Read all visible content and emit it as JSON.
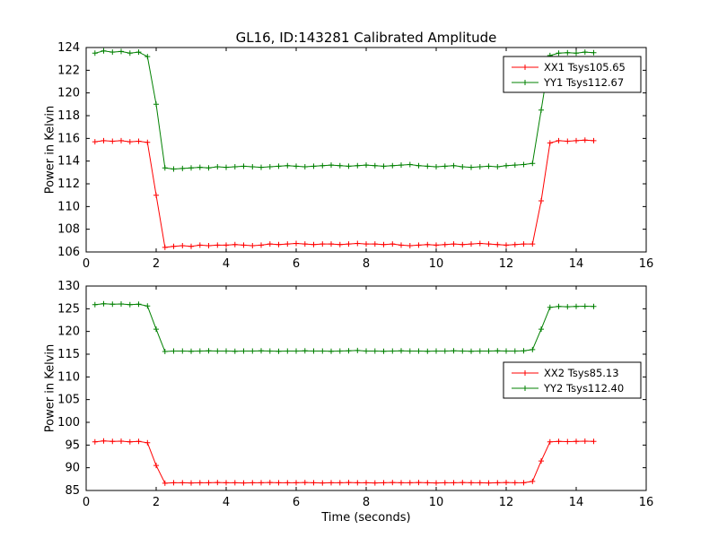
{
  "chart_data": [
    {
      "type": "line",
      "title": "GL16, ID:143281 Calibrated Amplitude",
      "xlabel": "",
      "ylabel": "Power in Kelvin",
      "xlim": [
        0,
        16
      ],
      "ylim": [
        106,
        124
      ],
      "xticks": [
        0,
        2,
        4,
        6,
        8,
        10,
        12,
        14,
        16
      ],
      "yticks": [
        106,
        108,
        110,
        112,
        114,
        116,
        118,
        120,
        122,
        124
      ],
      "legend_loc": "upper right",
      "grid": false,
      "x": [
        0.25,
        0.5,
        0.75,
        1.0,
        1.25,
        1.5,
        1.75,
        2.0,
        2.25,
        2.5,
        2.75,
        3.0,
        3.25,
        3.5,
        3.75,
        4.0,
        4.25,
        4.5,
        4.75,
        5.0,
        5.25,
        5.5,
        5.75,
        6.0,
        6.25,
        6.5,
        6.75,
        7.0,
        7.25,
        7.5,
        7.75,
        8.0,
        8.25,
        8.5,
        8.75,
        9.0,
        9.25,
        9.5,
        9.75,
        10.0,
        10.25,
        10.5,
        10.75,
        11.0,
        11.25,
        11.5,
        11.75,
        12.0,
        12.25,
        12.5,
        12.75,
        13.0,
        13.25,
        13.5,
        13.75,
        14.0,
        14.25,
        14.5
      ],
      "series": [
        {
          "name": "XX1 Tsys105.65",
          "color": "#ff0000",
          "marker": "+",
          "values": [
            115.7,
            115.8,
            115.75,
            115.8,
            115.7,
            115.75,
            115.65,
            111.0,
            106.4,
            106.5,
            106.55,
            106.5,
            106.6,
            106.55,
            106.6,
            106.6,
            106.65,
            106.6,
            106.55,
            106.6,
            106.7,
            106.65,
            106.7,
            106.75,
            106.7,
            106.65,
            106.7,
            106.7,
            106.65,
            106.7,
            106.75,
            106.7,
            106.7,
            106.65,
            106.7,
            106.6,
            106.55,
            106.6,
            106.65,
            106.6,
            106.65,
            106.7,
            106.65,
            106.7,
            106.75,
            106.7,
            106.65,
            106.6,
            106.65,
            106.7,
            106.7,
            110.5,
            115.6,
            115.8,
            115.75,
            115.8,
            115.85,
            115.8
          ]
        },
        {
          "name": "YY1 Tsys112.67",
          "color": "#008000",
          "marker": "+",
          "values": [
            123.5,
            123.7,
            123.6,
            123.65,
            123.5,
            123.6,
            123.2,
            119.0,
            113.4,
            113.3,
            113.35,
            113.4,
            113.45,
            113.4,
            113.5,
            113.45,
            113.5,
            113.55,
            113.5,
            113.45,
            113.5,
            113.55,
            113.6,
            113.55,
            113.5,
            113.55,
            113.6,
            113.65,
            113.6,
            113.55,
            113.6,
            113.65,
            113.6,
            113.55,
            113.6,
            113.65,
            113.7,
            113.6,
            113.55,
            113.5,
            113.55,
            113.6,
            113.5,
            113.45,
            113.5,
            113.55,
            113.5,
            113.6,
            113.65,
            113.7,
            113.8,
            118.5,
            123.3,
            123.5,
            123.55,
            123.5,
            123.6,
            123.55
          ]
        }
      ]
    },
    {
      "type": "line",
      "title": "",
      "xlabel": "Time (seconds)",
      "ylabel": "Power in Kelvin",
      "xlim": [
        0,
        16
      ],
      "ylim": [
        85,
        130
      ],
      "xticks": [
        0,
        2,
        4,
        6,
        8,
        10,
        12,
        14,
        16
      ],
      "yticks": [
        85,
        90,
        95,
        100,
        105,
        110,
        115,
        120,
        125,
        130
      ],
      "legend_loc": "center right",
      "grid": false,
      "x": [
        0.25,
        0.5,
        0.75,
        1.0,
        1.25,
        1.5,
        1.75,
        2.0,
        2.25,
        2.5,
        2.75,
        3.0,
        3.25,
        3.5,
        3.75,
        4.0,
        4.25,
        4.5,
        4.75,
        5.0,
        5.25,
        5.5,
        5.75,
        6.0,
        6.25,
        6.5,
        6.75,
        7.0,
        7.25,
        7.5,
        7.75,
        8.0,
        8.25,
        8.5,
        8.75,
        9.0,
        9.25,
        9.5,
        9.75,
        10.0,
        10.25,
        10.5,
        10.75,
        11.0,
        11.25,
        11.5,
        11.75,
        12.0,
        12.25,
        12.5,
        12.75,
        13.0,
        13.25,
        13.5,
        13.75,
        14.0,
        14.25,
        14.5
      ],
      "series": [
        {
          "name": "XX2 Tsys85.13",
          "color": "#ff0000",
          "marker": "+",
          "values": [
            95.7,
            95.9,
            95.8,
            95.85,
            95.7,
            95.8,
            95.5,
            90.5,
            86.6,
            86.7,
            86.7,
            86.65,
            86.7,
            86.7,
            86.75,
            86.7,
            86.7,
            86.65,
            86.7,
            86.7,
            86.75,
            86.7,
            86.7,
            86.7,
            86.75,
            86.7,
            86.65,
            86.7,
            86.7,
            86.75,
            86.7,
            86.7,
            86.65,
            86.7,
            86.75,
            86.7,
            86.7,
            86.75,
            86.7,
            86.65,
            86.7,
            86.7,
            86.75,
            86.7,
            86.7,
            86.65,
            86.7,
            86.75,
            86.7,
            86.7,
            87.0,
            91.5,
            95.7,
            95.8,
            95.75,
            95.8,
            95.85,
            95.8
          ]
        },
        {
          "name": "YY2 Tsys112.40",
          "color": "#008000",
          "marker": "+",
          "values": [
            125.9,
            126.1,
            126.0,
            126.05,
            125.9,
            126.0,
            125.6,
            120.5,
            115.6,
            115.7,
            115.7,
            115.65,
            115.7,
            115.75,
            115.7,
            115.7,
            115.65,
            115.7,
            115.7,
            115.75,
            115.7,
            115.65,
            115.7,
            115.7,
            115.75,
            115.7,
            115.7,
            115.65,
            115.7,
            115.75,
            115.8,
            115.7,
            115.7,
            115.65,
            115.7,
            115.75,
            115.7,
            115.7,
            115.65,
            115.7,
            115.7,
            115.75,
            115.7,
            115.65,
            115.7,
            115.7,
            115.75,
            115.7,
            115.7,
            115.75,
            116.0,
            120.5,
            125.3,
            125.5,
            125.45,
            125.5,
            125.55,
            125.5
          ]
        }
      ]
    }
  ]
}
